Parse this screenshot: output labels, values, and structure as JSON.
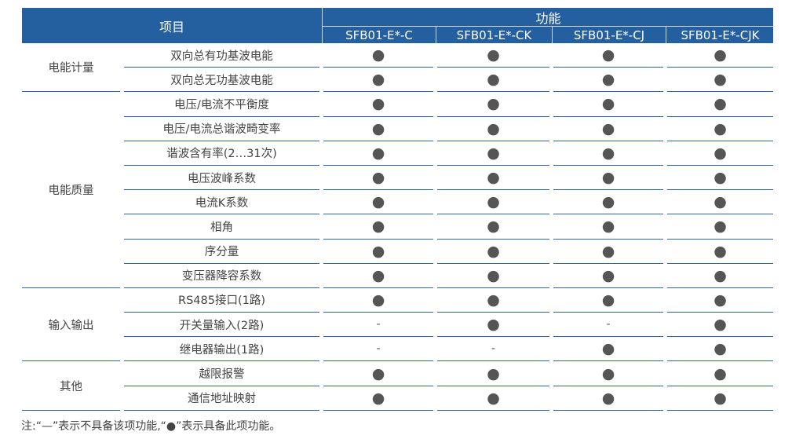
{
  "header": {
    "item": "项目",
    "function": "功能",
    "models": [
      "SFB01-E*-C",
      "SFB01-E*-CK",
      "SFB01-E*-CJ",
      "SFB01-E*-CJK"
    ]
  },
  "groups": [
    {
      "name": "电能计量",
      "rows": [
        {
          "item": "双向总有功基波电能",
          "marks": [
            "●",
            "●",
            "●",
            "●"
          ]
        },
        {
          "item": "双向总无功基波电能",
          "marks": [
            "●",
            "●",
            "●",
            "●"
          ]
        }
      ]
    },
    {
      "name": "电能质量",
      "rows": [
        {
          "item": "电压/电流不平衡度",
          "marks": [
            "●",
            "●",
            "●",
            "●"
          ]
        },
        {
          "item": "电压/电流总谐波畸变率",
          "marks": [
            "●",
            "●",
            "●",
            "●"
          ]
        },
        {
          "item": "谐波含有率(2…31次)",
          "marks": [
            "●",
            "●",
            "●",
            "●"
          ]
        },
        {
          "item": "电压波峰系数",
          "marks": [
            "●",
            "●",
            "●",
            "●"
          ]
        },
        {
          "item": "电流K系数",
          "marks": [
            "●",
            "●",
            "●",
            "●"
          ]
        },
        {
          "item": "相角",
          "marks": [
            "●",
            "●",
            "●",
            "●"
          ]
        },
        {
          "item": "序分量",
          "marks": [
            "●",
            "●",
            "●",
            "●"
          ]
        },
        {
          "item": "变压器降容系数",
          "marks": [
            "●",
            "●",
            "●",
            "●"
          ]
        }
      ]
    },
    {
      "name": "输入输出",
      "rows": [
        {
          "item": "RS485接口(1路)",
          "marks": [
            "●",
            "●",
            "●",
            "●"
          ]
        },
        {
          "item": "开关量输入(2路)",
          "marks": [
            "-",
            "●",
            "-",
            "●"
          ]
        },
        {
          "item": "继电器输出(1路)",
          "marks": [
            "-",
            "-",
            "●",
            "●"
          ]
        }
      ]
    },
    {
      "name": "其他",
      "rows": [
        {
          "item": "越限报警",
          "marks": [
            "●",
            "●",
            "●",
            "●"
          ]
        },
        {
          "item": "通信地址映射",
          "marks": [
            "●",
            "●",
            "●",
            "●"
          ]
        }
      ]
    }
  ],
  "note": "注:“—”表示不具备该项功能,“●”表示具备此项功能。"
}
